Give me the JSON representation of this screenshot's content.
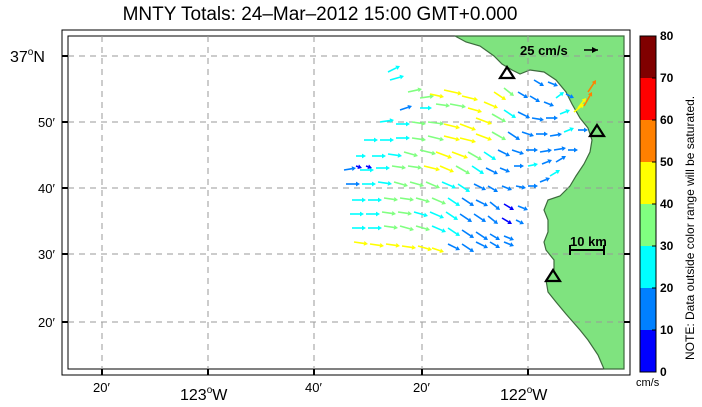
{
  "title": "MNTY Totals: 24–Mar–2012 15:00 GMT+0.000",
  "scale_arrow_label": "25 cm/s",
  "scale_bar_label": "10 km",
  "colorbar": {
    "ticks": [
      "0",
      "10",
      "20",
      "30",
      "40",
      "50",
      "60",
      "70",
      "80"
    ],
    "colors": [
      "#0000ff",
      "#0080ff",
      "#00ffff",
      "#80ff80",
      "#ffff00",
      "#ff8000",
      "#ff0000",
      "#800000"
    ],
    "unit": "cm/s",
    "note": "NOTE: Data outside color range will be saturated."
  },
  "axes": {
    "lat_labels": [
      {
        "text": "37",
        "deg": true,
        "suffix": "N"
      },
      {
        "text": "50′"
      },
      {
        "text": "40′"
      },
      {
        "text": "30′"
      },
      {
        "text": "20′"
      }
    ],
    "lon_labels": [
      {
        "text": "20′"
      },
      {
        "text": "123",
        "deg": true,
        "suffix": "W"
      },
      {
        "text": "40′"
      },
      {
        "text": "20′"
      },
      {
        "text": "122",
        "deg": true,
        "suffix": "W"
      }
    ]
  },
  "colors": {
    "land": "#7fe37f",
    "arrow_scale": "#000000"
  }
}
